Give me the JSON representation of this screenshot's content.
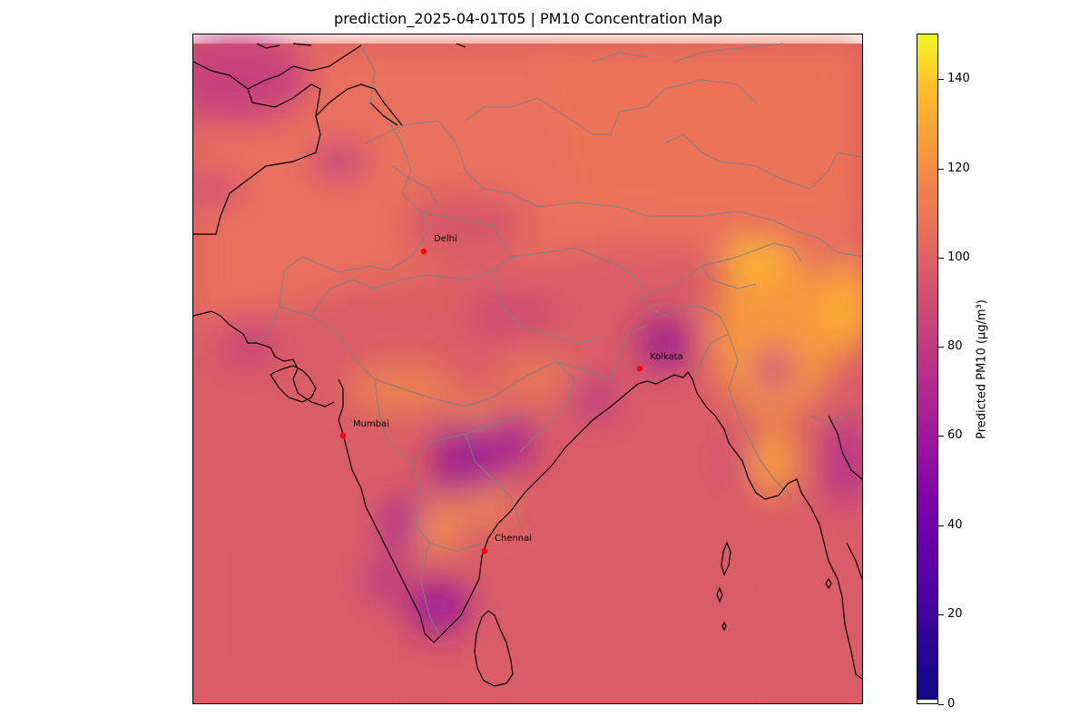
{
  "title": "prediction_2025-04-01T05 | PM10 Concentration Map",
  "cities": [
    {
      "name": "Delhi"
    },
    {
      "name": "Mumbai"
    },
    {
      "name": "Kolkata"
    },
    {
      "name": "Chennai"
    }
  ],
  "colorbar": {
    "label": "Predicted PM10 (μg/m³)",
    "colormap": "plasma",
    "range": [
      0,
      150
    ],
    "ticks": [
      "0",
      "20",
      "40",
      "60",
      "80",
      "100",
      "120",
      "140"
    ]
  },
  "colors": {
    "city_marker": "#ff0000",
    "coastline": "#000000",
    "borders": "#808080",
    "background_concentration": "#e06a5c"
  }
}
